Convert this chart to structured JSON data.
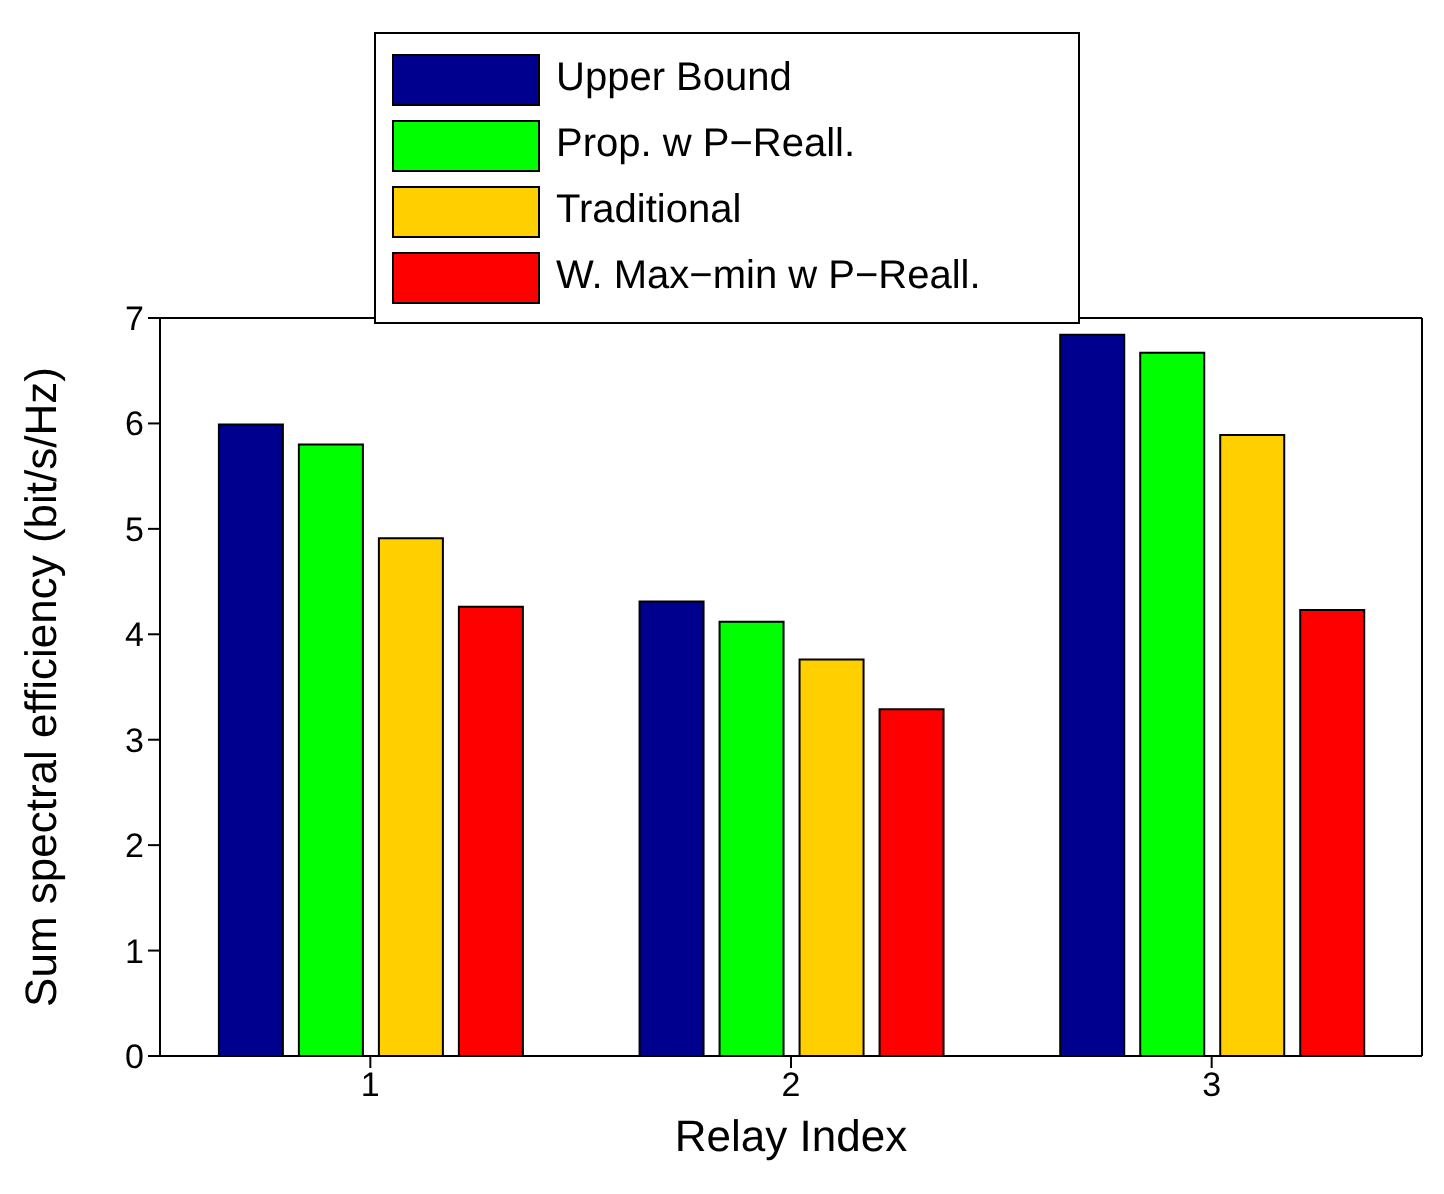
{
  "chart_data": {
    "type": "bar",
    "xlabel": "Relay Index",
    "ylabel": "Sum spectral efficiency (bit/s/Hz)",
    "categories": [
      "1",
      "2",
      "3"
    ],
    "series": [
      {
        "name": "Upper Bound",
        "color": "#00008f",
        "values": [
          5.99,
          4.31,
          6.84
        ]
      },
      {
        "name": "Prop. w P−Reall.",
        "color": "#00ff00",
        "values": [
          5.8,
          4.12,
          6.67
        ]
      },
      {
        "name": "Traditional",
        "color": "#ffcf00",
        "values": [
          4.91,
          3.76,
          5.89
        ]
      },
      {
        "name": "W. Max−min w P−Reall.",
        "color": "#ff0000",
        "values": [
          4.26,
          3.29,
          4.23
        ]
      }
    ],
    "ylim": [
      0,
      7
    ],
    "yticks": [
      0,
      1,
      2,
      3,
      4,
      5,
      6,
      7
    ],
    "legend": "top"
  }
}
